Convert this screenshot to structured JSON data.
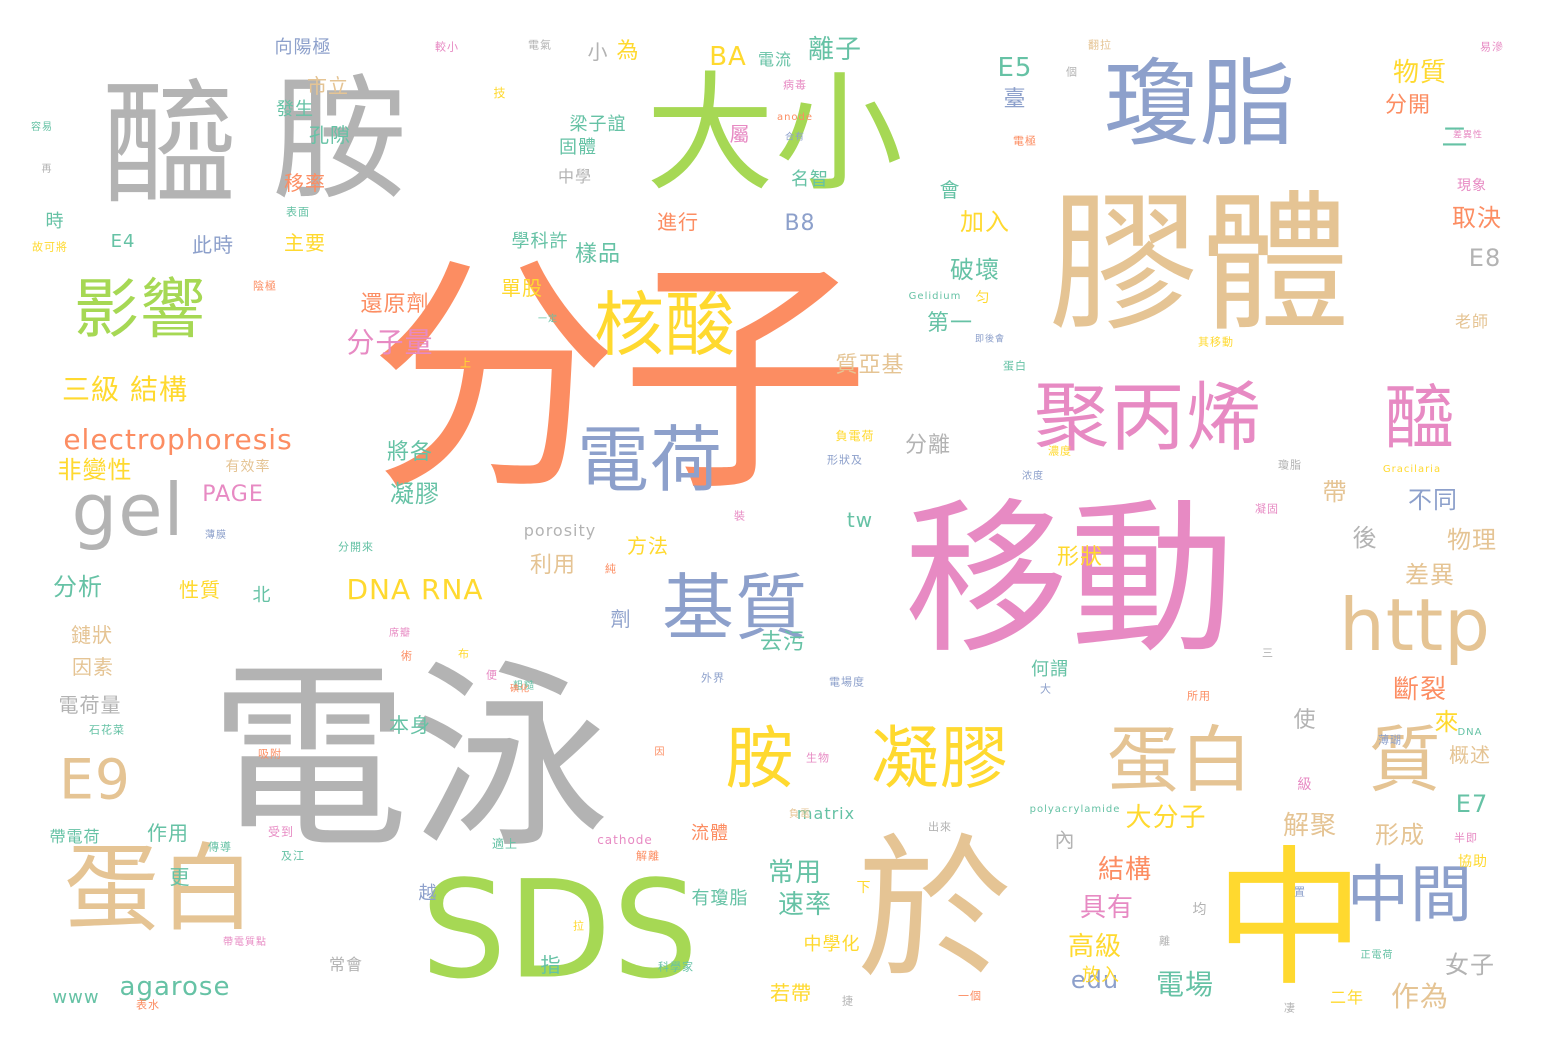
{
  "palette": {
    "orange": "#fc8d62",
    "gray": "#b3b3b3",
    "green": "#a6d854",
    "pink": "#e78ac3",
    "yellow": "#ffd92f",
    "tan": "#e5c494",
    "blue": "#8da0cb",
    "teal": "#66c2a5"
  },
  "words": [
    {
      "text": "分子",
      "color": "orange"
    },
    {
      "text": "電泳",
      "color": "gray"
    },
    {
      "text": "移動",
      "color": "pink"
    },
    {
      "text": "膠體",
      "color": "tan"
    },
    {
      "text": "大小",
      "color": "green"
    },
    {
      "text": "醯",
      "color": "gray"
    },
    {
      "text": "胺",
      "color": "gray"
    },
    {
      "text": "瓊脂",
      "color": "blue"
    },
    {
      "text": "SDS",
      "color": "green"
    },
    {
      "text": "於",
      "color": "tan"
    },
    {
      "text": "中",
      "color": "yellow"
    },
    {
      "text": "蛋白",
      "color": "tan"
    },
    {
      "text": "聚丙烯",
      "color": "pink"
    },
    {
      "text": "醯",
      "color": "pink"
    },
    {
      "text": "電荷",
      "color": "blue"
    },
    {
      "text": "基質",
      "color": "blue"
    },
    {
      "text": "凝膠",
      "color": "yellow"
    },
    {
      "text": "胺",
      "color": "yellow"
    },
    {
      "text": "蛋白",
      "color": "tan"
    },
    {
      "text": "質",
      "color": "tan"
    },
    {
      "text": "影響",
      "color": "green"
    },
    {
      "text": "核酸",
      "color": "yellow"
    },
    {
      "text": "gel",
      "color": "gray"
    },
    {
      "text": "http",
      "color": "tan"
    },
    {
      "text": "E9",
      "color": "tan"
    },
    {
      "text": "中間",
      "color": "blue"
    },
    {
      "text": "electrophoresis",
      "color": "orange"
    },
    {
      "text": "三級 結構",
      "color": "yellow"
    },
    {
      "text": "分子量",
      "color": "pink"
    },
    {
      "text": "DNA RNA",
      "color": "yellow"
    },
    {
      "text": "agarose",
      "color": "teal"
    },
    {
      "text": "電場",
      "color": "teal"
    },
    {
      "text": "作為",
      "color": "tan"
    },
    {
      "text": "女子",
      "color": "gray"
    },
    {
      "text": "高級",
      "color": "yellow"
    },
    {
      "text": "edu",
      "color": "blue"
    },
    {
      "text": "具有",
      "color": "pink"
    },
    {
      "text": "結構",
      "color": "orange"
    },
    {
      "text": "常用",
      "color": "teal"
    },
    {
      "text": "速率",
      "color": "teal"
    },
    {
      "text": "大分子",
      "color": "yellow"
    },
    {
      "text": "形成",
      "color": "tan"
    },
    {
      "text": "E7",
      "color": "teal"
    },
    {
      "text": "解聚",
      "color": "tan"
    },
    {
      "text": "概述",
      "color": "tan"
    },
    {
      "text": "斷裂",
      "color": "orange"
    },
    {
      "text": "來",
      "color": "yellow"
    },
    {
      "text": "差異",
      "color": "tan"
    },
    {
      "text": "物理",
      "color": "tan"
    },
    {
      "text": "後",
      "color": "gray"
    },
    {
      "text": "不同",
      "color": "blue"
    },
    {
      "text": "帶",
      "color": "tan"
    },
    {
      "text": "形狀",
      "color": "yellow"
    },
    {
      "text": "分離",
      "color": "gray"
    },
    {
      "text": "E8",
      "color": "gray"
    },
    {
      "text": "取決",
      "color": "orange"
    },
    {
      "text": "老師",
      "color": "tan"
    },
    {
      "text": "現象",
      "color": "pink"
    },
    {
      "text": "分開",
      "color": "orange"
    },
    {
      "text": "物質",
      "color": "yellow"
    },
    {
      "text": "二",
      "color": "teal"
    },
    {
      "text": "E5",
      "color": "teal"
    },
    {
      "text": "臺",
      "color": "blue"
    },
    {
      "text": "會",
      "color": "teal"
    },
    {
      "text": "加入",
      "color": "yellow"
    },
    {
      "text": "破壞",
      "color": "teal"
    },
    {
      "text": "第一",
      "color": "teal"
    },
    {
      "text": "質亞基",
      "color": "tan"
    },
    {
      "text": "離子",
      "color": "teal"
    },
    {
      "text": "BA",
      "color": "yellow"
    },
    {
      "text": "電流",
      "color": "teal"
    },
    {
      "text": "屬",
      "color": "pink"
    },
    {
      "text": "名智",
      "color": "teal"
    },
    {
      "text": "B8",
      "color": "blue"
    },
    {
      "text": "進行",
      "color": "orange"
    },
    {
      "text": "樣品",
      "color": "teal"
    },
    {
      "text": "學科許",
      "color": "teal"
    },
    {
      "text": "單股",
      "color": "yellow"
    },
    {
      "text": "還原劑",
      "color": "orange"
    },
    {
      "text": "梁子誼",
      "color": "teal"
    },
    {
      "text": "固體",
      "color": "teal"
    },
    {
      "text": "中學",
      "color": "gray"
    },
    {
      "text": "小",
      "color": "gray"
    },
    {
      "text": "為",
      "color": "yellow"
    },
    {
      "text": "向陽極",
      "color": "blue"
    },
    {
      "text": "市立",
      "color": "tan"
    },
    {
      "text": "發生",
      "color": "teal"
    },
    {
      "text": "孔隙",
      "color": "teal"
    },
    {
      "text": "移率",
      "color": "orange"
    },
    {
      "text": "主要",
      "color": "yellow"
    },
    {
      "text": "此時",
      "color": "blue"
    },
    {
      "text": "時",
      "color": "teal"
    },
    {
      "text": "E4",
      "color": "teal"
    },
    {
      "text": "非變性",
      "color": "yellow"
    },
    {
      "text": "PAGE",
      "color": "pink"
    },
    {
      "text": "有效率",
      "color": "tan"
    },
    {
      "text": "將各",
      "color": "teal"
    },
    {
      "text": "凝膠",
      "color": "teal"
    },
    {
      "text": "分析",
      "color": "teal"
    },
    {
      "text": "性質",
      "color": "yellow"
    },
    {
      "text": "北",
      "color": "teal"
    },
    {
      "text": "鏈狀",
      "color": "tan"
    },
    {
      "text": "因素",
      "color": "tan"
    },
    {
      "text": "電荷量",
      "color": "gray"
    },
    {
      "text": "去污",
      "color": "teal"
    },
    {
      "text": "利用",
      "color": "tan"
    },
    {
      "text": "方法",
      "color": "yellow"
    },
    {
      "text": "porosity",
      "color": "gray"
    },
    {
      "text": "劑",
      "color": "blue"
    },
    {
      "text": "tw",
      "color": "teal"
    },
    {
      "text": "何謂",
      "color": "teal"
    },
    {
      "text": "本身",
      "color": "teal"
    },
    {
      "text": "使",
      "color": "gray"
    },
    {
      "text": "作用",
      "color": "teal"
    },
    {
      "text": "matrix",
      "color": "teal"
    },
    {
      "text": "內",
      "color": "gray"
    },
    {
      "text": "流體",
      "color": "orange"
    },
    {
      "text": "帶電荷",
      "color": "teal"
    },
    {
      "text": "更",
      "color": "teal"
    },
    {
      "text": "越",
      "color": "blue"
    },
    {
      "text": "指",
      "color": "teal"
    },
    {
      "text": "www",
      "color": "teal"
    },
    {
      "text": "中學化",
      "color": "yellow"
    },
    {
      "text": "若帶",
      "color": "yellow"
    },
    {
      "text": "放入",
      "color": "yellow"
    },
    {
      "text": "二年",
      "color": "yellow"
    },
    {
      "text": "有瓊脂",
      "color": "teal"
    },
    {
      "text": "常會",
      "color": "gray"
    },
    {
      "text": "均",
      "color": "gray"
    },
    {
      "text": "下",
      "color": "yellow"
    },
    {
      "text": "Gelidium",
      "color": "teal"
    },
    {
      "text": "polyacrylamide",
      "color": "teal"
    },
    {
      "text": "Gracilaria",
      "color": "yellow"
    },
    {
      "text": "cathode",
      "color": "pink"
    },
    {
      "text": "anode",
      "color": "orange"
    },
    {
      "text": "DNA",
      "color": "teal"
    },
    {
      "text": "負電荷",
      "color": "yellow"
    },
    {
      "text": "形狀及",
      "color": "blue"
    },
    {
      "text": "外界",
      "color": "blue"
    },
    {
      "text": "電場度",
      "color": "blue"
    },
    {
      "text": "出來",
      "color": "gray"
    },
    {
      "text": "適上",
      "color": "teal"
    },
    {
      "text": "及江",
      "color": "teal"
    },
    {
      "text": "受到",
      "color": "pink"
    },
    {
      "text": "吸附",
      "color": "orange"
    },
    {
      "text": "科學家",
      "color": "teal"
    },
    {
      "text": "一個",
      "color": "orange"
    },
    {
      "text": "正電荷",
      "color": "teal"
    },
    {
      "text": "帶電質點",
      "color": "pink"
    },
    {
      "text": "其移動",
      "color": "yellow"
    },
    {
      "text": "協助",
      "color": "yellow"
    },
    {
      "text": "易滲",
      "color": "pink"
    },
    {
      "text": "電極",
      "color": "orange"
    },
    {
      "text": "病毒",
      "color": "pink"
    },
    {
      "text": "合有",
      "color": "blue"
    },
    {
      "text": "容易",
      "color": "teal"
    },
    {
      "text": "表面",
      "color": "teal"
    },
    {
      "text": "故可將",
      "color": "yellow"
    },
    {
      "text": "陰極",
      "color": "orange"
    },
    {
      "text": "一定",
      "color": "teal"
    },
    {
      "text": "即後會",
      "color": "blue"
    },
    {
      "text": "匀",
      "color": "yellow"
    },
    {
      "text": "差異性",
      "color": "pink"
    },
    {
      "text": "較小",
      "color": "pink"
    },
    {
      "text": "電氣",
      "color": "gray"
    },
    {
      "text": "翻拉",
      "color": "tan"
    },
    {
      "text": "技",
      "color": "yellow"
    },
    {
      "text": "再",
      "color": "gray"
    },
    {
      "text": "上",
      "color": "yellow"
    },
    {
      "text": "個",
      "color": "gray"
    },
    {
      "text": "裝",
      "color": "pink"
    },
    {
      "text": "蛋白",
      "color": "teal"
    },
    {
      "text": "浓度",
      "color": "blue"
    },
    {
      "text": "凝固",
      "color": "pink"
    },
    {
      "text": "薄膜",
      "color": "blue"
    },
    {
      "text": "分開來",
      "color": "teal"
    },
    {
      "text": "負電",
      "color": "tan"
    },
    {
      "text": "生物",
      "color": "pink"
    },
    {
      "text": "因",
      "color": "orange"
    },
    {
      "text": "術",
      "color": "orange"
    },
    {
      "text": "席瓣",
      "color": "pink"
    },
    {
      "text": "粗糙",
      "color": "teal"
    },
    {
      "text": "所用",
      "color": "orange"
    },
    {
      "text": "大",
      "color": "blue"
    },
    {
      "text": "三",
      "color": "gray"
    },
    {
      "text": "布",
      "color": "yellow"
    },
    {
      "text": "純",
      "color": "orange"
    },
    {
      "text": "級",
      "color": "pink"
    },
    {
      "text": "薄瑚",
      "color": "blue"
    },
    {
      "text": "石花菜",
      "color": "teal"
    },
    {
      "text": "瓊脂",
      "color": "gray"
    },
    {
      "text": "傳導",
      "color": "teal"
    },
    {
      "text": "便",
      "color": "pink"
    },
    {
      "text": "解離",
      "color": "orange"
    },
    {
      "text": "濃度",
      "color": "yellow"
    },
    {
      "text": "一",
      "color": "gray"
    },
    {
      "text": "置",
      "color": "blue"
    },
    {
      "text": "半即",
      "color": "pink"
    },
    {
      "text": "離",
      "color": "gray"
    },
    {
      "text": "拉",
      "color": "yellow"
    },
    {
      "text": "表水",
      "color": "orange"
    },
    {
      "text": "捷",
      "color": "gray"
    },
    {
      "text": "凄",
      "color": "gray"
    },
    {
      "text": "碘化",
      "color": "orange"
    }
  ]
}
